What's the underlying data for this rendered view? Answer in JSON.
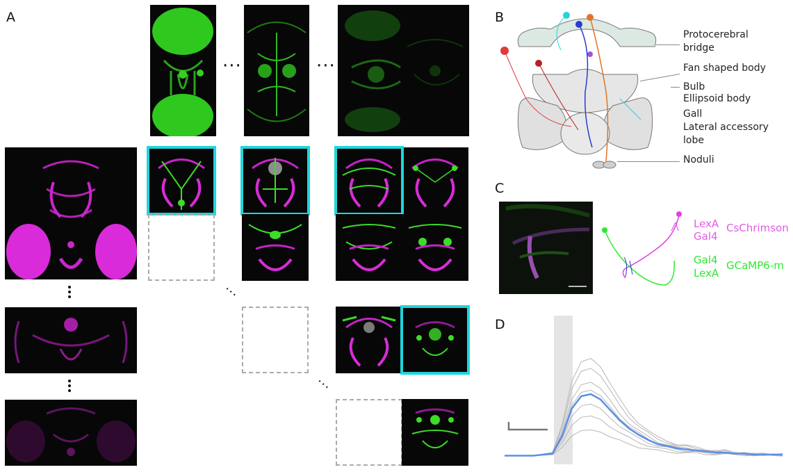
{
  "panels": {
    "a": "A",
    "b": "B",
    "c": "C",
    "d": "D"
  },
  "panel_b": {
    "labels": [
      "Protocerebral\nbridge",
      "Fan shaped body",
      "Bulb",
      "Ellipsoid body",
      "Gall",
      "Lateral accessory\nlobe",
      "Noduli"
    ]
  },
  "panel_c": {
    "row1_driver_a": "LexA",
    "row1_driver_b": "Gal4",
    "row1_effector": "CsChrimson",
    "row2_driver_a": "Gal4",
    "row2_driver_b": "LexA",
    "row2_effector": "GCaMP6-m"
  },
  "colors": {
    "highlight": "#1fd6db",
    "magenta": "#e52ce6",
    "green": "#3cdc28",
    "trace_mean": "#5b8fe6",
    "trace_trial": "#b7b7b7",
    "stim_shade": "#e4e4e4"
  },
  "panel_d": {
    "mean_trace": [
      0.03,
      0.03,
      0.03,
      0.03,
      0.04,
      0.05,
      0.22,
      0.48,
      0.6,
      0.62,
      0.57,
      0.47,
      0.37,
      0.29,
      0.23,
      0.18,
      0.14,
      0.12,
      0.1,
      0.09,
      0.08,
      0.07,
      0.06,
      0.06,
      0.05,
      0.05,
      0.04,
      0.04,
      0.04,
      0.04
    ],
    "trial_peaks": [
      0.98,
      0.88,
      0.74,
      0.66,
      0.52,
      0.4,
      0.26
    ]
  }
}
